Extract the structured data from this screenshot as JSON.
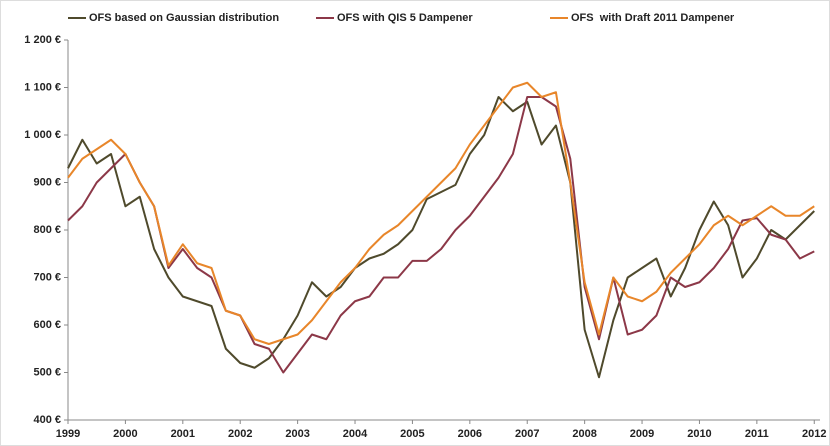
{
  "chart_data": {
    "type": "line",
    "x": [
      1999,
      1999.25,
      1999.5,
      1999.75,
      2000,
      2000.25,
      2000.5,
      2000.75,
      2001,
      2001.25,
      2001.5,
      2001.75,
      2002,
      2002.25,
      2002.5,
      2002.75,
      2003,
      2003.25,
      2003.5,
      2003.75,
      2004,
      2004.25,
      2004.5,
      2004.75,
      2005,
      2005.25,
      2005.5,
      2005.75,
      2006,
      2006.25,
      2006.5,
      2006.75,
      2007,
      2007.25,
      2007.5,
      2007.75,
      2008,
      2008.25,
      2008.5,
      2008.75,
      2009,
      2009.25,
      2009.5,
      2009.75,
      2010,
      2010.25,
      2010.5,
      2010.75,
      2011,
      2011.25,
      2011.5,
      2011.75,
      2012
    ],
    "series": [
      {
        "name": "OFS based on Gaussian distribution",
        "color": "#4f4a2c",
        "values": [
          930,
          990,
          940,
          960,
          850,
          870,
          760,
          700,
          660,
          650,
          640,
          550,
          520,
          510,
          530,
          570,
          620,
          690,
          660,
          680,
          720,
          740,
          750,
          770,
          800,
          865,
          880,
          895,
          960,
          1000,
          1080,
          1050,
          1070,
          980,
          1020,
          900,
          590,
          490,
          610,
          700,
          720,
          740,
          660,
          720,
          800,
          860,
          810,
          700,
          740,
          800,
          780,
          810,
          840
        ]
      },
      {
        "name": "OFS with QIS 5 Dampener",
        "color": "#8c3848",
        "values": [
          820,
          850,
          900,
          930,
          960,
          900,
          850,
          720,
          760,
          720,
          700,
          630,
          620,
          560,
          550,
          500,
          540,
          580,
          570,
          620,
          650,
          660,
          700,
          700,
          735,
          735,
          760,
          800,
          830,
          870,
          910,
          960,
          1080,
          1080,
          1060,
          950,
          680,
          570,
          700,
          580,
          590,
          620,
          700,
          680,
          690,
          720,
          760,
          820,
          825,
          790,
          780,
          740,
          755
        ]
      },
      {
        "name": "OFS  with Draft 2011 Dampener",
        "color": "#e8862a",
        "values": [
          910,
          950,
          970,
          990,
          960,
          900,
          850,
          725,
          770,
          730,
          720,
          630,
          620,
          570,
          560,
          570,
          580,
          610,
          650,
          690,
          720,
          760,
          790,
          810,
          840,
          870,
          900,
          930,
          980,
          1020,
          1060,
          1100,
          1110,
          1080,
          1090,
          900,
          690,
          580,
          700,
          660,
          650,
          670,
          710,
          740,
          770,
          810,
          830,
          810,
          830,
          850,
          830,
          830,
          850
        ]
      }
    ],
    "xlim": [
      1999,
      2012.1
    ],
    "xticks": [
      1999,
      2000,
      2001,
      2002,
      2003,
      2004,
      2005,
      2006,
      2007,
      2008,
      2009,
      2010,
      2011,
      2012
    ],
    "ylim": [
      400,
      1200
    ],
    "yticks": [
      {
        "value": 400,
        "label": "400 €"
      },
      {
        "value": 500,
        "label": "500 €"
      },
      {
        "value": 600,
        "label": "600 €"
      },
      {
        "value": 700,
        "label": "700 €"
      },
      {
        "value": 800,
        "label": "800 €"
      },
      {
        "value": 900,
        "label": "900 €"
      },
      {
        "value": 1000,
        "label": "1 000 €"
      },
      {
        "value": 1100,
        "label": "1 100 €"
      },
      {
        "value": 1200,
        "label": "1 200 €"
      }
    ]
  }
}
